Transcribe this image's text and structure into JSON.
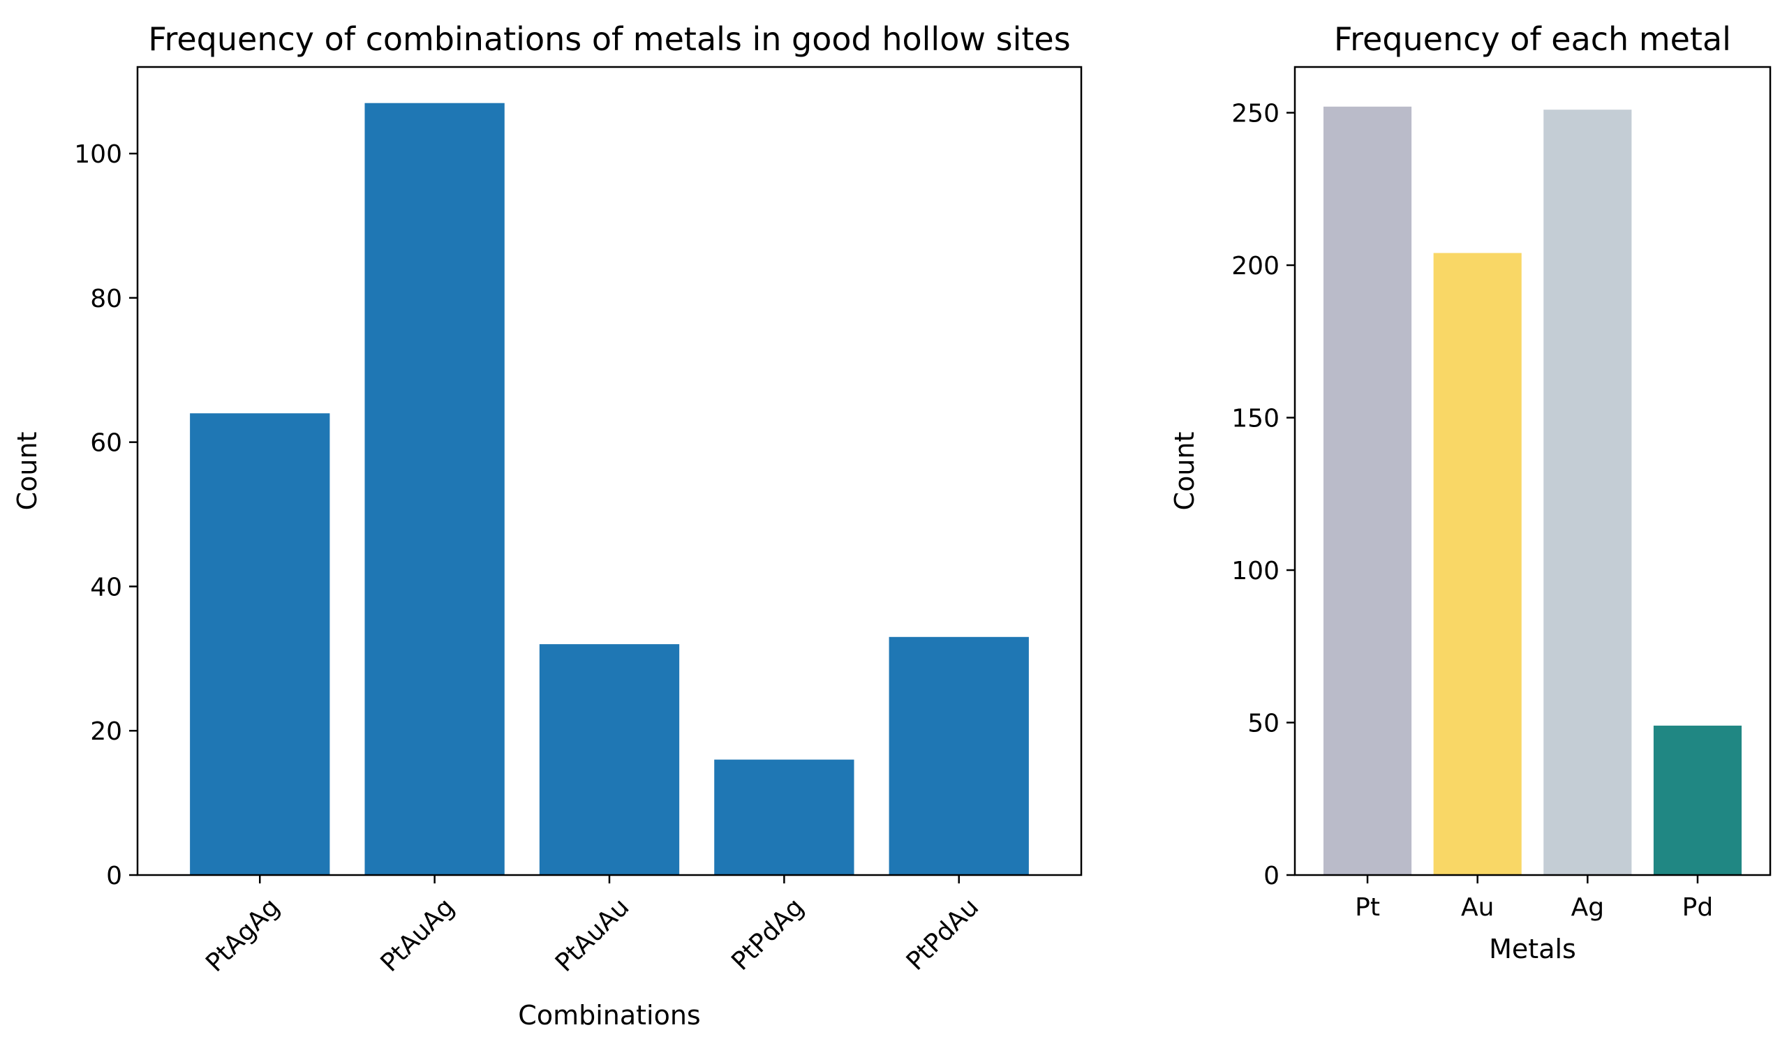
{
  "chart_data": [
    {
      "type": "bar",
      "title": "Frequency of combinations of metals in good hollow sites",
      "xlabel": "Combinations",
      "ylabel": "Count",
      "categories": [
        "PtAgAg",
        "PtAuAg",
        "PtAuAu",
        "PtPdAg",
        "PtPdAu"
      ],
      "values": [
        64,
        107,
        32,
        16,
        33
      ],
      "ylim": [
        0,
        112
      ],
      "yticks": [
        0,
        20,
        40,
        60,
        80,
        100
      ],
      "xtick_rotation": 45,
      "bar_colors": [
        "#1f77b4",
        "#1f77b4",
        "#1f77b4",
        "#1f77b4",
        "#1f77b4"
      ],
      "grid": false
    },
    {
      "type": "bar",
      "title": "Frequency of each metal",
      "xlabel": "Metals",
      "ylabel": "Count",
      "categories": [
        "Pt",
        "Au",
        "Ag",
        "Pd"
      ],
      "values": [
        252,
        204,
        251,
        49
      ],
      "ylim": [
        0,
        265
      ],
      "yticks": [
        0,
        50,
        100,
        150,
        200,
        250
      ],
      "xtick_rotation": 0,
      "bar_colors": [
        "#babbc9",
        "#f9d766",
        "#c4cdd5",
        "#208783"
      ],
      "grid": false
    }
  ]
}
